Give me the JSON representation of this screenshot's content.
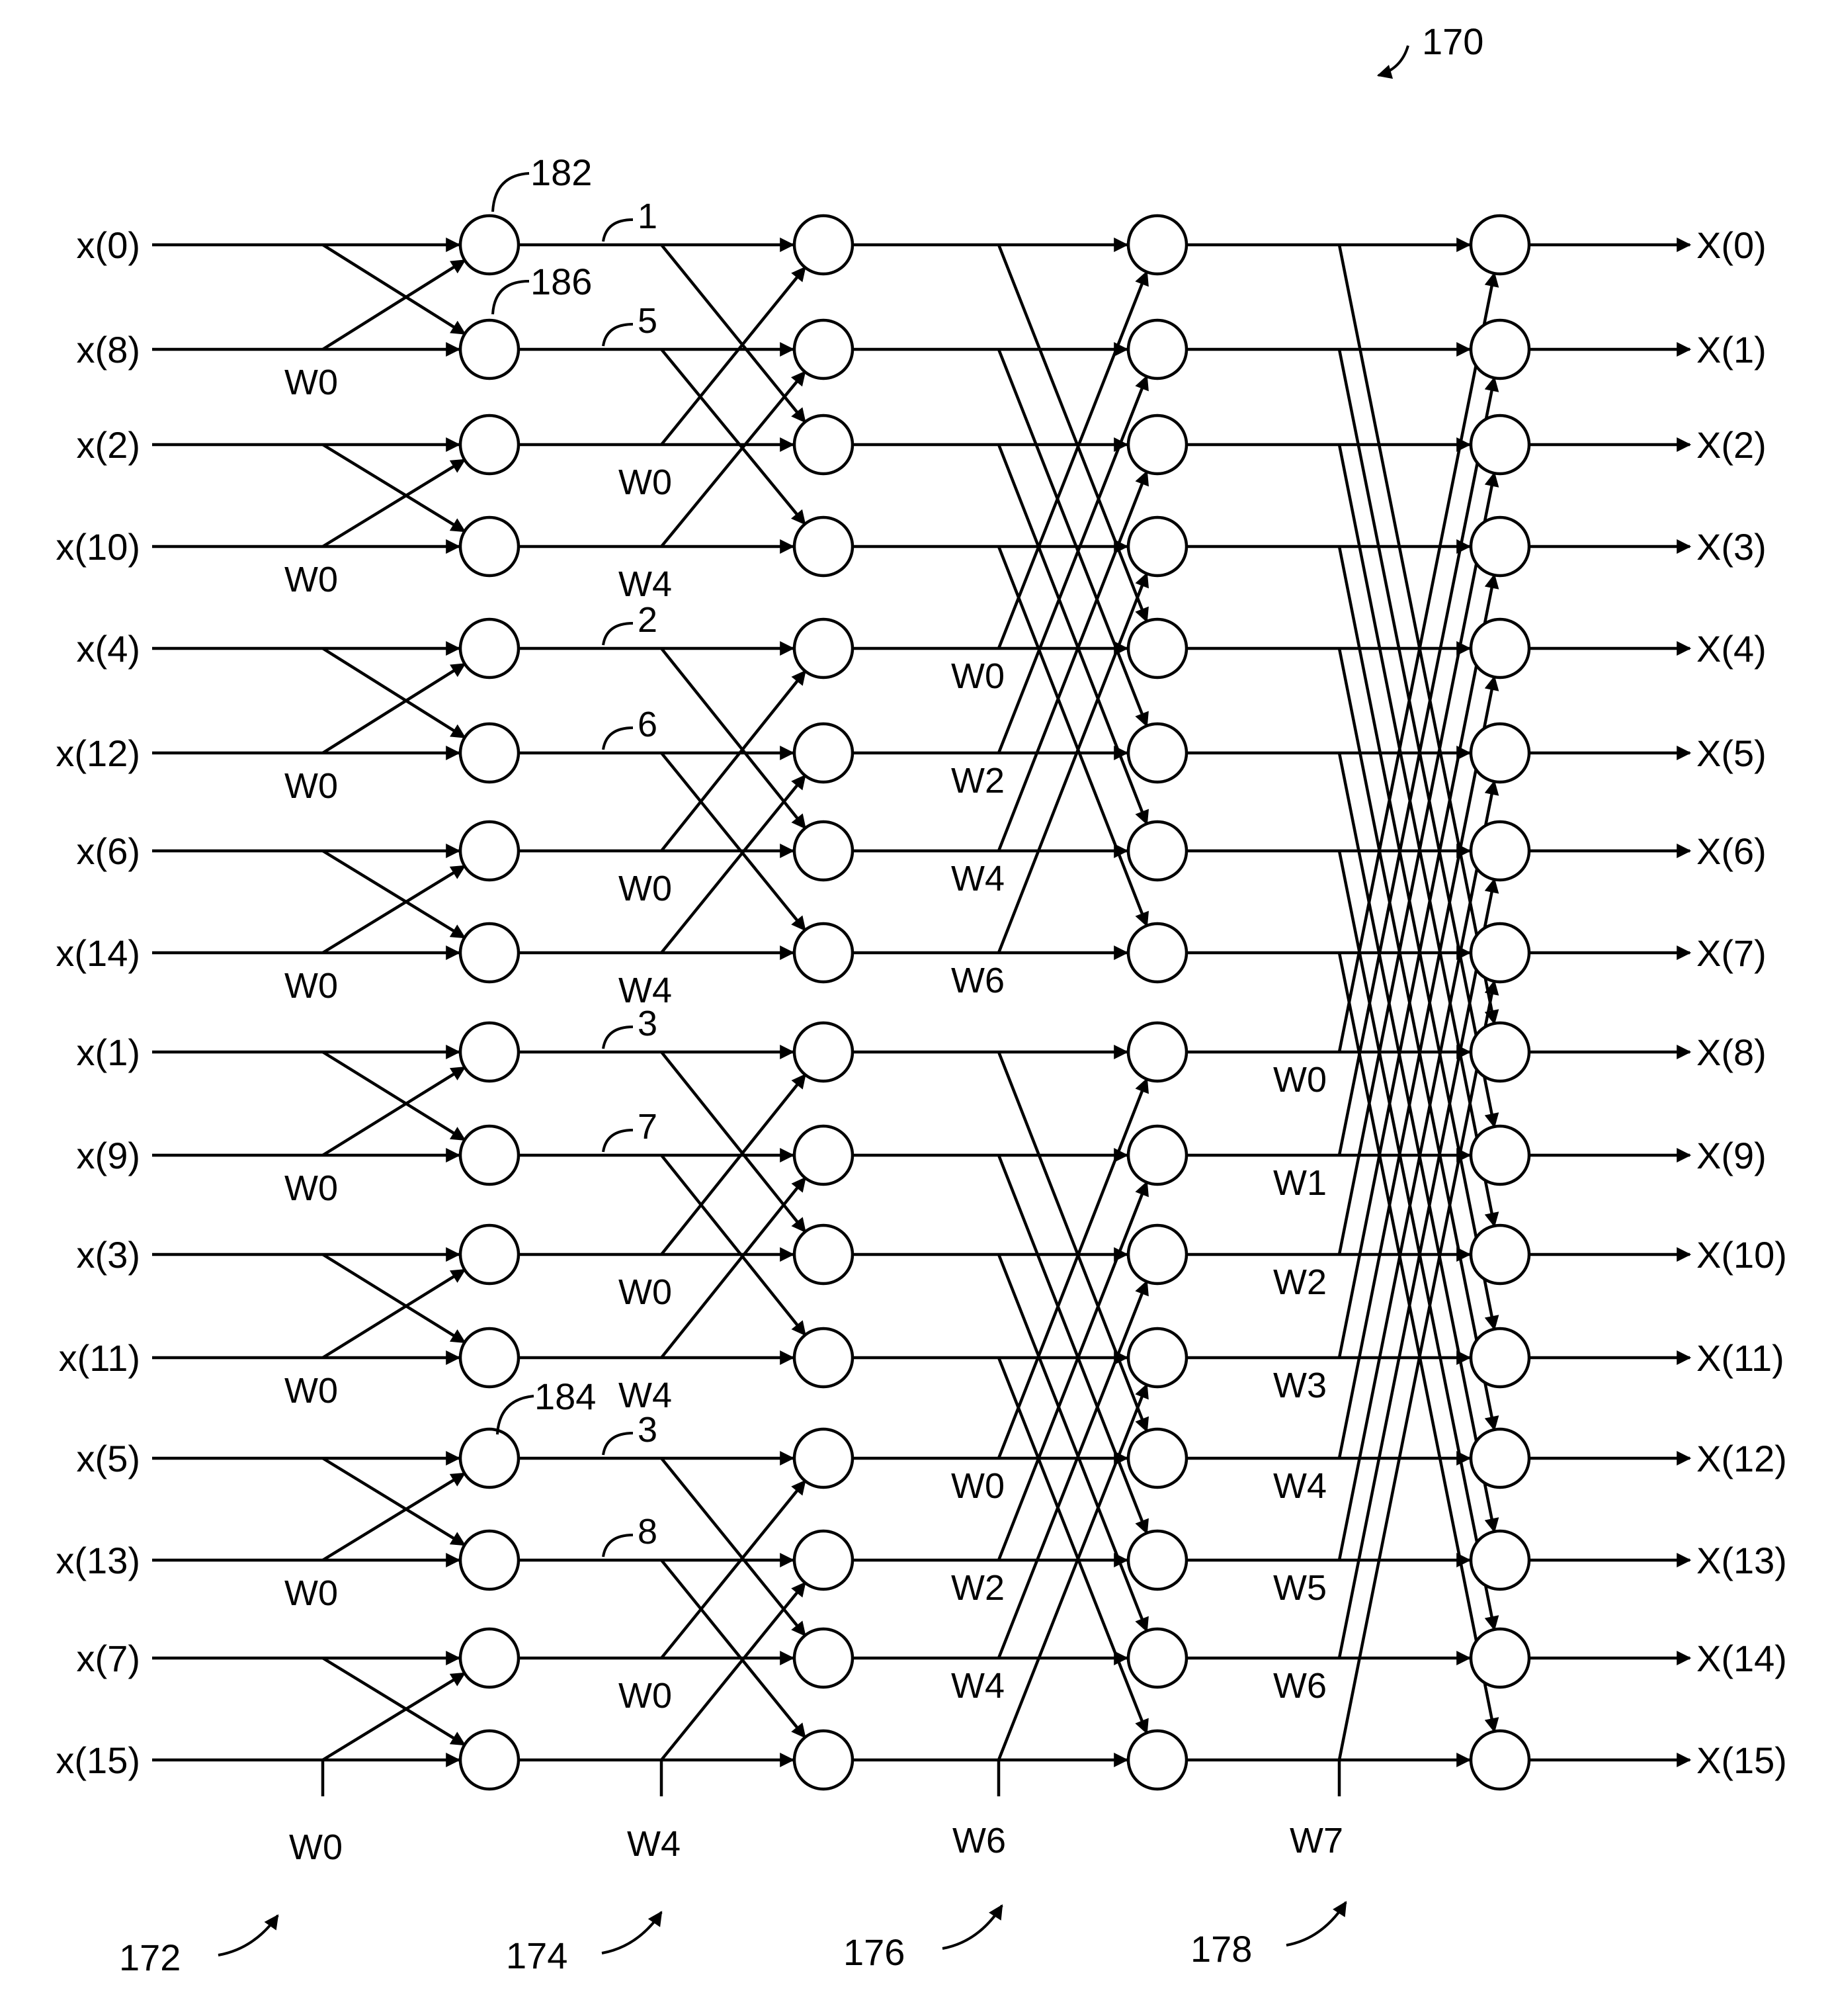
{
  "figure": {
    "ref_number": "170"
  },
  "inputs": [
    "x(0)",
    "x(8)",
    "x(2)",
    "x(10)",
    "x(4)",
    "x(12)",
    "x(6)",
    "x(14)",
    "x(1)",
    "x(9)",
    "x(3)",
    "x(11)",
    "x(5)",
    "x(13)",
    "x(7)",
    "x(15)"
  ],
  "outputs": [
    "X(0)",
    "X(1)",
    "X(2)",
    "X(3)",
    "X(4)",
    "X(5)",
    "X(6)",
    "X(7)",
    "X(8)",
    "X(9)",
    "X(10)",
    "X(11)",
    "X(12)",
    "X(13)",
    "X(14)",
    "X(15)"
  ],
  "stage1": {
    "twiddles": [
      "W0",
      "W0",
      "W0",
      "W0",
      "W0",
      "W0",
      "W0"
    ],
    "bottom_twiddle": "W0",
    "ref_number": "172"
  },
  "stage2": {
    "twiddles": [
      "W0",
      "W4",
      "W0",
      "W4",
      "W0",
      "W4",
      "W0"
    ],
    "bottom_twiddle": "W4",
    "ref_number": "174",
    "path_labels": [
      "1",
      "5",
      "2",
      "6",
      "3",
      "7",
      "3",
      "8"
    ]
  },
  "stage3": {
    "twiddles": [
      "W0",
      "W2",
      "W4",
      "W6",
      "W0",
      "W2",
      "W4"
    ],
    "bottom_twiddle": "W6",
    "ref_number": "176"
  },
  "stage4": {
    "twiddles": [
      "W0",
      "W1",
      "W2",
      "W3",
      "W4",
      "W5",
      "W6"
    ],
    "bottom_twiddle": "W7",
    "ref_number": "178"
  },
  "node_refs": [
    "182",
    "186",
    "184"
  ]
}
